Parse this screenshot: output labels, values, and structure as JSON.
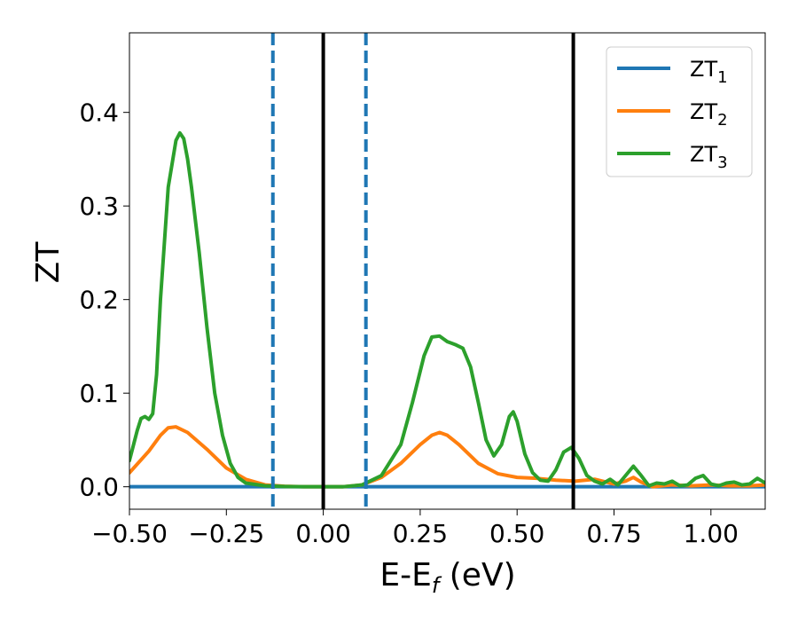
{
  "chart_data": {
    "type": "line",
    "xlabel_main": "E-E",
    "xlabel_sub": "f",
    "xlabel_unit": " (eV)",
    "ylabel": "ZT",
    "xlim": [
      -0.5,
      1.14
    ],
    "ylim": [
      -0.024,
      0.485
    ],
    "xticks": [
      -0.5,
      -0.25,
      0.0,
      0.25,
      0.5,
      0.75,
      1.0
    ],
    "xtick_labels": [
      "−0.50",
      "−0.25",
      "0.00",
      "0.25",
      "0.50",
      "0.75",
      "1.00"
    ],
    "yticks": [
      0.0,
      0.1,
      0.2,
      0.3,
      0.4
    ],
    "ytick_labels": [
      "0.0",
      "0.1",
      "0.2",
      "0.3",
      "0.4"
    ],
    "grid": false,
    "legend_position": "top-right",
    "series": [
      {
        "name_main": "ZT",
        "name_sub": "1",
        "color": "#1f77b4",
        "x": [
          -0.5,
          1.14
        ],
        "y": [
          0.0,
          0.0
        ]
      },
      {
        "name_main": "ZT",
        "name_sub": "2",
        "color": "#ff7f0e",
        "x": [
          -0.5,
          -0.45,
          -0.42,
          -0.4,
          -0.38,
          -0.35,
          -0.3,
          -0.25,
          -0.2,
          -0.15,
          -0.1,
          -0.05,
          0.0,
          0.05,
          0.1,
          0.15,
          0.2,
          0.25,
          0.28,
          0.3,
          0.32,
          0.35,
          0.4,
          0.45,
          0.5,
          0.55,
          0.6,
          0.65,
          0.7,
          0.75,
          0.78,
          0.8,
          0.82,
          0.85,
          0.9,
          0.95,
          1.0,
          1.05,
          1.1,
          1.14
        ],
        "y": [
          0.015,
          0.038,
          0.055,
          0.063,
          0.064,
          0.058,
          0.04,
          0.02,
          0.008,
          0.002,
          0.0005,
          0.0,
          0.0,
          0.0,
          0.002,
          0.01,
          0.025,
          0.045,
          0.055,
          0.058,
          0.055,
          0.045,
          0.025,
          0.014,
          0.01,
          0.009,
          0.007,
          0.006,
          0.008,
          0.003,
          0.006,
          0.01,
          0.005,
          0.0,
          0.002,
          0.001,
          0.002,
          0.001,
          0.001,
          0.002
        ]
      },
      {
        "name_main": "ZT",
        "name_sub": "3",
        "color": "#2ca02c",
        "x": [
          -0.5,
          -0.48,
          -0.47,
          -0.46,
          -0.45,
          -0.44,
          -0.43,
          -0.42,
          -0.4,
          -0.38,
          -0.37,
          -0.36,
          -0.35,
          -0.34,
          -0.32,
          -0.3,
          -0.28,
          -0.26,
          -0.24,
          -0.22,
          -0.2,
          -0.15,
          -0.1,
          -0.05,
          0.0,
          0.05,
          0.1,
          0.15,
          0.2,
          0.23,
          0.26,
          0.28,
          0.3,
          0.32,
          0.34,
          0.36,
          0.38,
          0.4,
          0.42,
          0.44,
          0.46,
          0.48,
          0.49,
          0.5,
          0.52,
          0.54,
          0.56,
          0.58,
          0.6,
          0.62,
          0.64,
          0.66,
          0.68,
          0.7,
          0.72,
          0.74,
          0.76,
          0.78,
          0.8,
          0.82,
          0.84,
          0.86,
          0.88,
          0.9,
          0.92,
          0.94,
          0.96,
          0.98,
          1.0,
          1.02,
          1.04,
          1.06,
          1.08,
          1.1,
          1.12,
          1.14
        ],
        "y": [
          0.028,
          0.06,
          0.073,
          0.075,
          0.072,
          0.078,
          0.12,
          0.2,
          0.32,
          0.37,
          0.378,
          0.372,
          0.35,
          0.32,
          0.25,
          0.17,
          0.1,
          0.055,
          0.025,
          0.01,
          0.004,
          0.001,
          0.0003,
          0.0,
          0.0,
          0.0,
          0.002,
          0.012,
          0.045,
          0.09,
          0.14,
          0.16,
          0.161,
          0.155,
          0.152,
          0.148,
          0.128,
          0.09,
          0.05,
          0.033,
          0.045,
          0.075,
          0.08,
          0.07,
          0.035,
          0.015,
          0.007,
          0.006,
          0.018,
          0.037,
          0.042,
          0.03,
          0.012,
          0.006,
          0.003,
          0.008,
          0.002,
          0.012,
          0.022,
          0.012,
          0.001,
          0.004,
          0.003,
          0.006,
          0.001,
          0.002,
          0.009,
          0.012,
          0.003,
          0.001,
          0.004,
          0.005,
          0.002,
          0.003,
          0.009,
          0.004
        ]
      }
    ],
    "vlines": [
      {
        "x": -0.13,
        "color": "#1f77b4",
        "style": "dashed"
      },
      {
        "x": 0.11,
        "color": "#1f77b4",
        "style": "dashed"
      },
      {
        "x": 0.0,
        "color": "#000000",
        "style": "solid"
      },
      {
        "x": 0.645,
        "color": "#000000",
        "style": "solid"
      }
    ]
  }
}
